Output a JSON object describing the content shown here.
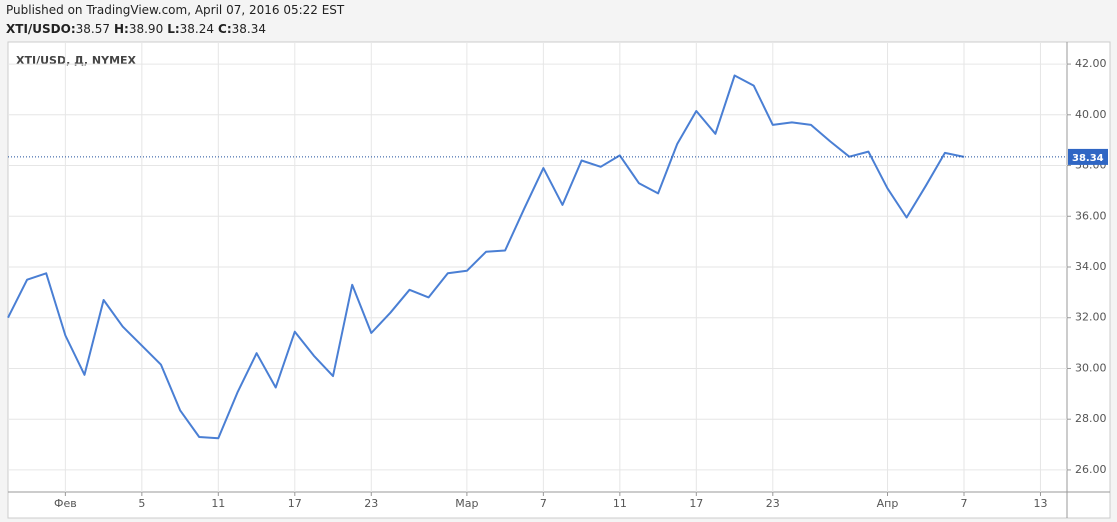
{
  "chart_data": {
    "type": "line",
    "title": "Published on TradingView.com, April 07, 2016 05:22 EST",
    "ohlc": [
      {
        "label": "XTI/USDO:",
        "text": "38.57"
      },
      {
        "label": "H:",
        "text": "38.90"
      },
      {
        "label": "L:",
        "text": "38.24"
      },
      {
        "label": "C:",
        "text": "38.34"
      }
    ],
    "subtitle": "XTI/USD, Д, NYMEX",
    "categories": [
      null,
      null,
      null,
      "Фев",
      null,
      null,
      null,
      "5",
      null,
      null,
      null,
      "11",
      null,
      null,
      null,
      "17",
      null,
      null,
      null,
      "23",
      null,
      null,
      null,
      null,
      "Мар",
      null,
      null,
      null,
      "7",
      null,
      null,
      null,
      "11",
      null,
      null,
      null,
      "17",
      null,
      null,
      null,
      "23",
      null,
      null,
      null,
      null,
      null,
      "Апр",
      null,
      null,
      null,
      "7",
      null,
      null,
      null,
      "13"
    ],
    "values": [
      32.0,
      33.5,
      33.75,
      31.3,
      29.75,
      32.7,
      31.65,
      30.9,
      30.15,
      28.35,
      27.3,
      27.25,
      29.05,
      30.6,
      29.25,
      31.45,
      30.5,
      29.7,
      33.3,
      31.4,
      32.2,
      33.1,
      32.8,
      33.75,
      33.85,
      34.6,
      34.65,
      36.3,
      37.9,
      36.45,
      38.2,
      37.95,
      38.4,
      37.3,
      36.9,
      38.85,
      40.15,
      39.25,
      41.55,
      41.15,
      39.6,
      39.7,
      39.6,
      38.95,
      38.35,
      38.55,
      37.1,
      35.95,
      37.2,
      38.5,
      38.34,
      null,
      null,
      null,
      null
    ],
    "color": "#4a7fd4",
    "last_price": 38.34,
    "ylim": [
      25.13,
      42.87
    ],
    "yticks": [
      {
        "value": 26,
        "label": "26.00"
      },
      {
        "value": 28,
        "label": "28.00"
      },
      {
        "value": 30,
        "label": "30.00"
      },
      {
        "value": 32,
        "label": "32.00"
      },
      {
        "value": 34,
        "label": "34.00"
      },
      {
        "value": 36,
        "label": "36.00"
      },
      {
        "value": 38,
        "label": "38.00"
      },
      {
        "value": 40,
        "label": "40.00"
      },
      {
        "value": 42,
        "label": "42.00"
      }
    ],
    "grid": true
  }
}
